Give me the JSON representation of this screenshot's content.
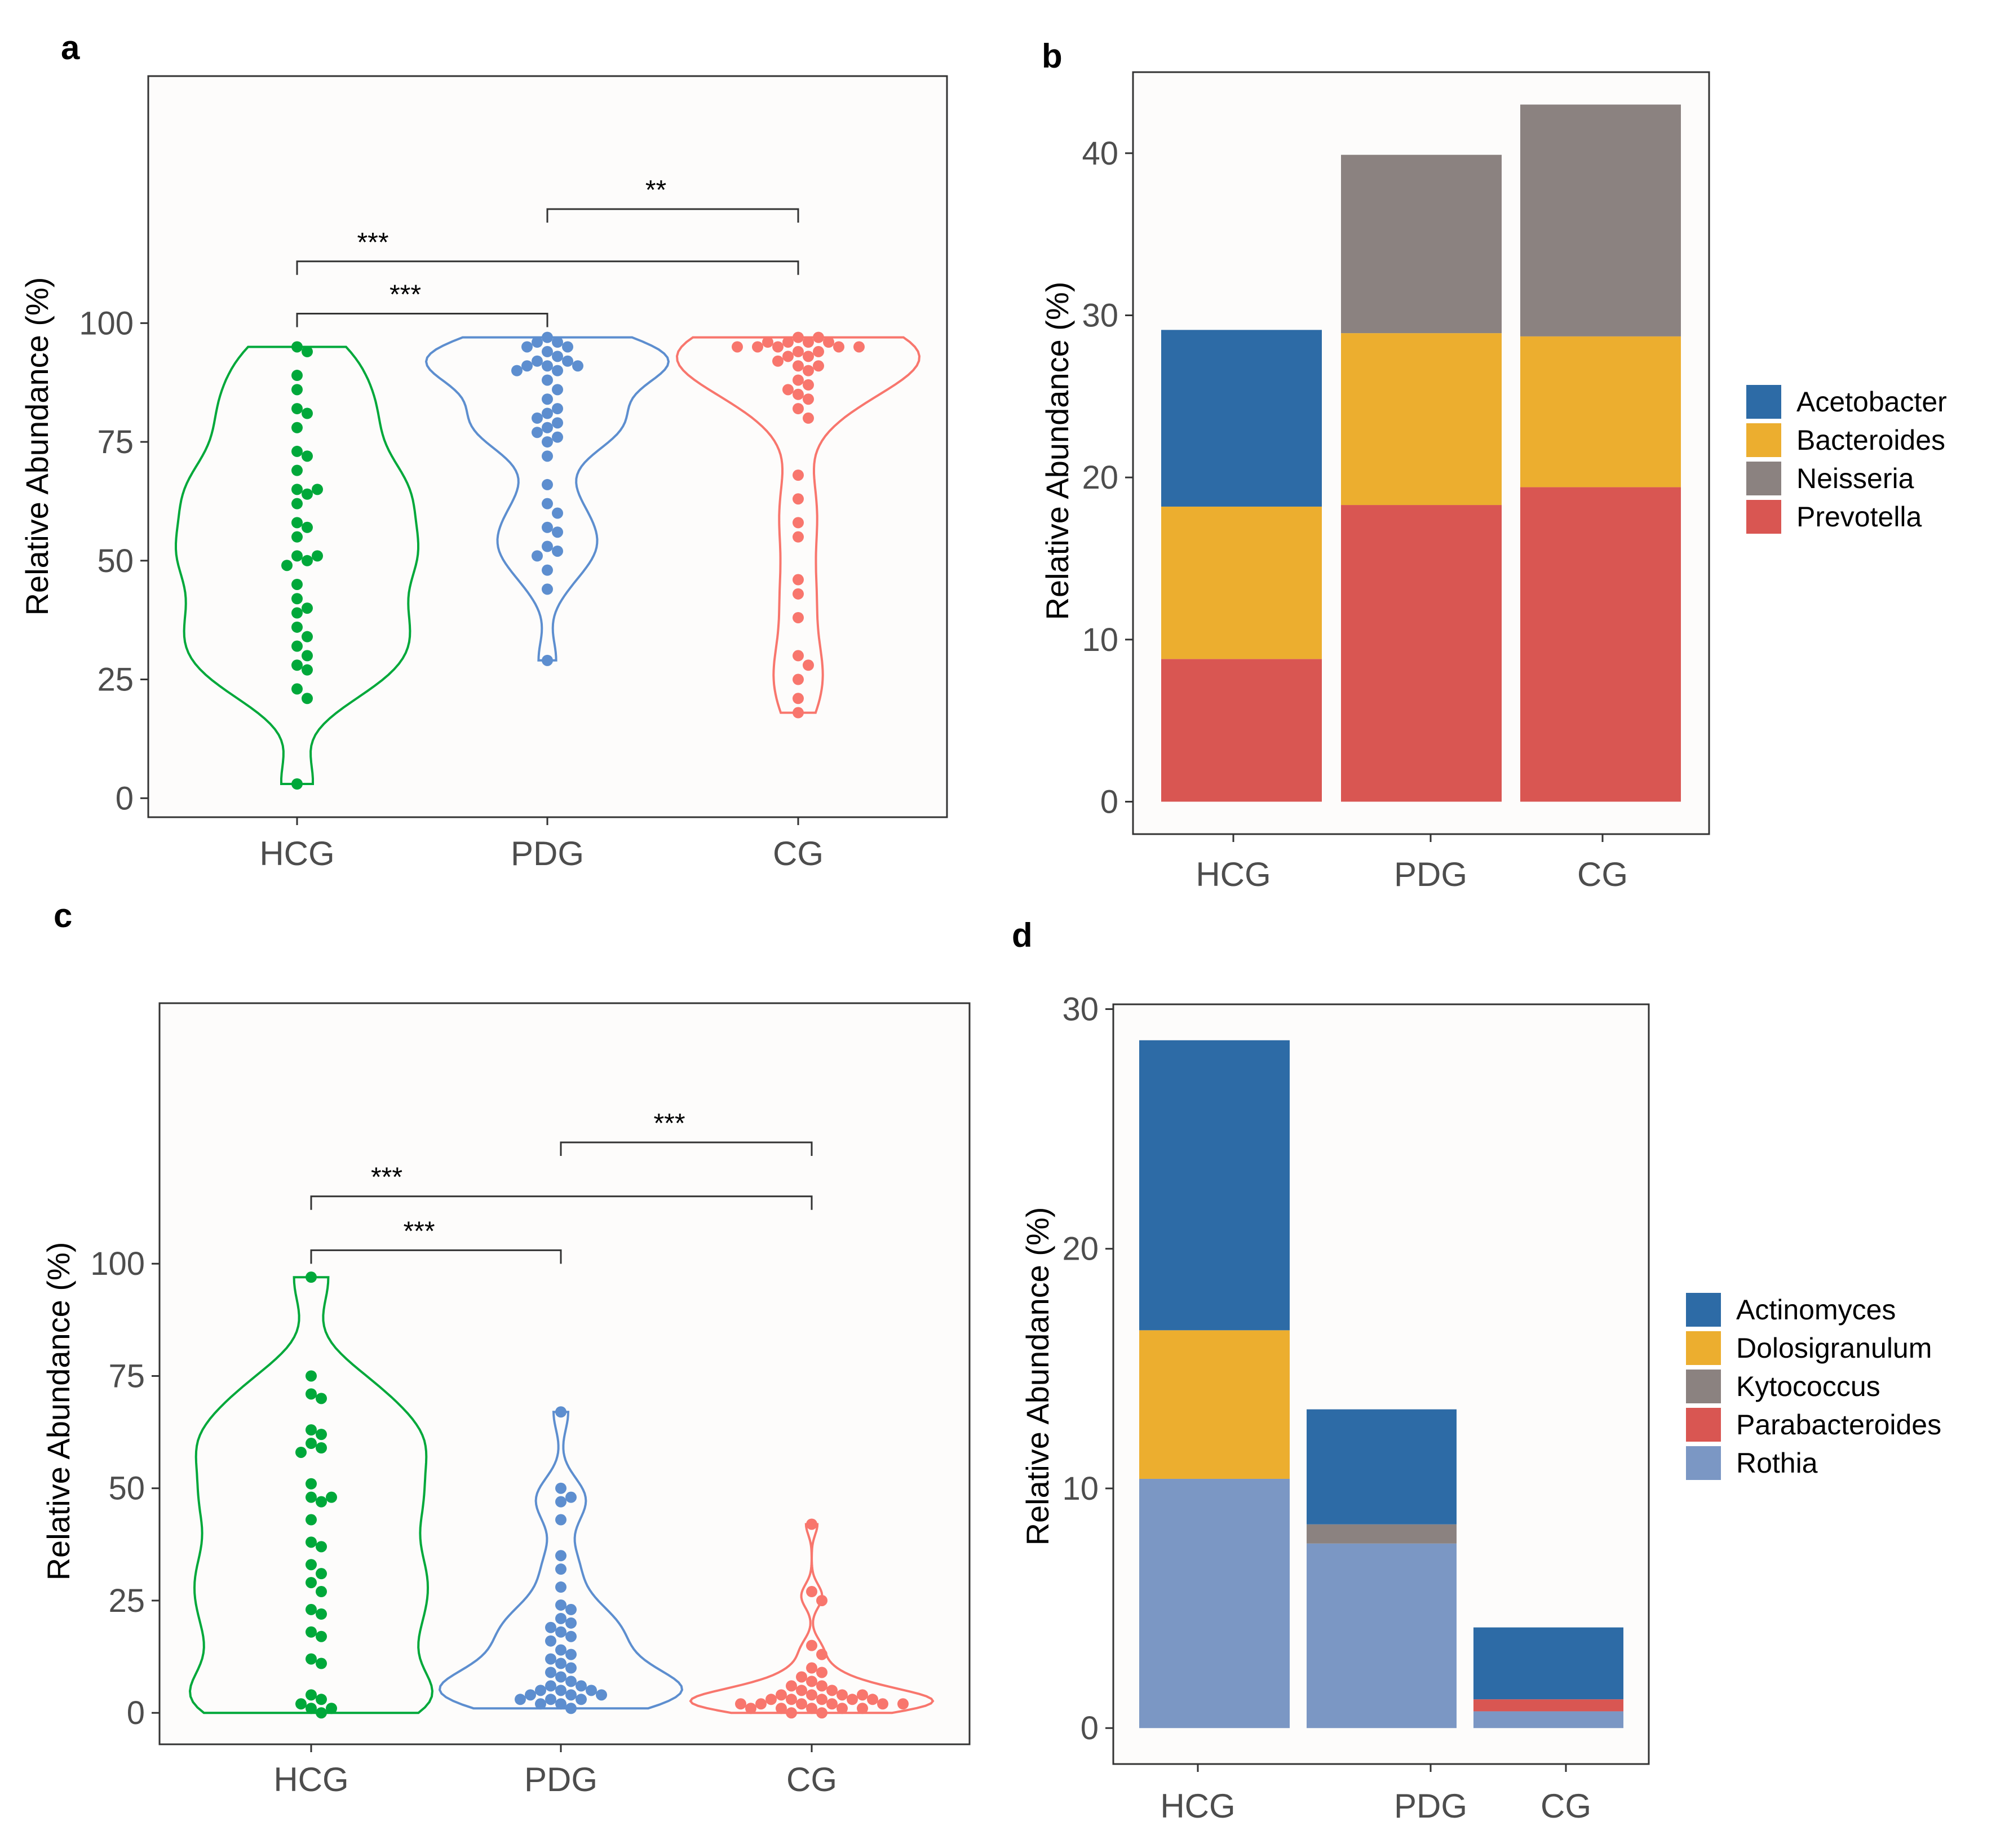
{
  "figure": {
    "panels": [
      "a",
      "b",
      "c",
      "d"
    ]
  },
  "chart_data": [
    {
      "id": "a",
      "type": "violin",
      "title": "",
      "xlabel": "",
      "ylabel": "Relative Abundance (%)",
      "categories": [
        "HCG",
        "PDG",
        "CG"
      ],
      "colors": [
        "#00a83a",
        "#5d8ecf",
        "#f8766d"
      ],
      "yticks": [
        0,
        25,
        50,
        75,
        100
      ],
      "ylim": [
        -4,
        152
      ],
      "series": [
        {
          "name": "HCG",
          "values": [
            95,
            94,
            89,
            86,
            82,
            81,
            78,
            73,
            72,
            69,
            65,
            65,
            64,
            62,
            58,
            57,
            55,
            51,
            51,
            50,
            49,
            45,
            42,
            40,
            39,
            36,
            34,
            32,
            30,
            28,
            27,
            23,
            21,
            3
          ]
        },
        {
          "name": "PDG",
          "values": [
            97,
            96,
            96,
            95,
            95,
            94,
            93,
            92,
            92,
            91,
            91,
            91,
            90,
            90,
            88,
            86,
            84,
            82,
            81,
            80,
            79,
            78,
            77,
            76,
            75,
            72,
            66,
            62,
            60,
            57,
            56,
            53,
            52,
            51,
            48,
            44,
            29
          ]
        },
        {
          "name": "CG",
          "values": [
            97,
            97,
            96,
            96,
            96,
            96,
            95,
            95,
            95,
            95,
            95,
            94,
            94,
            93,
            93,
            92,
            91,
            91,
            90,
            88,
            87,
            86,
            85,
            84,
            82,
            80,
            68,
            63,
            58,
            55,
            46,
            43,
            38,
            30,
            28,
            25,
            21,
            18
          ]
        }
      ],
      "significance": [
        {
          "from": "HCG",
          "to": "PDG",
          "label": "***",
          "y": 102
        },
        {
          "from": "HCG",
          "to": "CG",
          "label": "***",
          "y": 113
        },
        {
          "from": "PDG",
          "to": "CG",
          "label": "**",
          "y": 124
        }
      ]
    },
    {
      "id": "b",
      "type": "stacked-bar",
      "title": "",
      "xlabel": "",
      "ylabel": "Relative Abundance (%)",
      "categories": [
        "HCG",
        "PDG",
        "CG"
      ],
      "yticks": [
        0,
        10,
        20,
        30,
        40
      ],
      "ylim": [
        -2,
        45
      ],
      "legend_position": "right",
      "series": [
        {
          "name": "Acetobacter",
          "color": "#2d6ba6",
          "values": [
            10.9,
            0,
            0
          ]
        },
        {
          "name": "Bacteroides",
          "color": "#ecae2f",
          "values": [
            9.4,
            10.6,
            9.3
          ]
        },
        {
          "name": "Neisseria",
          "color": "#8b8280",
          "values": [
            0,
            11.0,
            14.3
          ]
        },
        {
          "name": "Prevotella",
          "color": "#d95652",
          "values": [
            8.8,
            18.3,
            19.4
          ]
        }
      ],
      "stack_order": [
        "Prevotella",
        "Bacteroides",
        "Neisseria",
        "Acetobacter"
      ]
    },
    {
      "id": "c",
      "type": "violin",
      "title": "",
      "xlabel": "",
      "ylabel": "Relative Abundance (%)",
      "categories": [
        "HCG",
        "PDG",
        "CG"
      ],
      "colors": [
        "#00a83a",
        "#5d8ecf",
        "#f8766d"
      ],
      "yticks": [
        0,
        25,
        50,
        75,
        100
      ],
      "ylim": [
        -7,
        158
      ],
      "series": [
        {
          "name": "HCG",
          "values": [
            97,
            75,
            71,
            70,
            63,
            62,
            60,
            59,
            58,
            51,
            48,
            48,
            47,
            43,
            38,
            37,
            33,
            31,
            29,
            27,
            23,
            22,
            18,
            17,
            12,
            11,
            4,
            3,
            2,
            1,
            1,
            0
          ]
        },
        {
          "name": "PDG",
          "values": [
            67,
            50,
            48,
            47,
            43,
            35,
            32,
            28,
            24,
            23,
            21,
            20,
            19,
            18,
            17,
            16,
            14,
            13,
            12,
            11,
            10,
            9,
            8,
            7,
            6,
            6,
            5,
            5,
            5,
            4,
            4,
            4,
            3,
            3,
            3,
            2,
            2,
            1
          ]
        },
        {
          "name": "CG",
          "values": [
            42,
            27,
            25,
            15,
            13,
            10,
            9,
            8,
            7,
            6,
            6,
            5,
            5,
            4,
            4,
            4,
            4,
            3,
            3,
            3,
            3,
            3,
            2,
            2,
            2,
            2,
            2,
            2,
            1,
            1,
            1,
            1,
            1,
            0,
            0
          ]
        }
      ],
      "significance": [
        {
          "from": "HCG",
          "to": "PDG",
          "label": "***",
          "y": 103
        },
        {
          "from": "HCG",
          "to": "CG",
          "label": "***",
          "y": 115
        },
        {
          "from": "PDG",
          "to": "CG",
          "label": "***",
          "y": 127
        }
      ]
    },
    {
      "id": "d",
      "type": "stacked-bar",
      "title": "",
      "xlabel": "",
      "ylabel": "Relative Abundance (%)",
      "categories": [
        "HCG",
        "PDG",
        "CG"
      ],
      "yticks": [
        0,
        10,
        20,
        30
      ],
      "ylim": [
        -1.5,
        30.2
      ],
      "legend_position": "right",
      "series": [
        {
          "name": "Actinomyces",
          "color": "#2d6ba6",
          "values": [
            12.1,
            4.8,
            3.0
          ]
        },
        {
          "name": "Dolosigranulum",
          "color": "#ecae2f",
          "values": [
            6.2,
            0,
            0
          ]
        },
        {
          "name": "Kytococcus",
          "color": "#8b8280",
          "values": [
            0,
            0.8,
            0
          ]
        },
        {
          "name": "Parabacteroides",
          "color": "#d95652",
          "values": [
            0,
            0,
            0.5
          ]
        },
        {
          "name": "Rothia",
          "color": "#7b97c4",
          "values": [
            10.4,
            7.7,
            0.7
          ]
        }
      ],
      "stack_order": [
        "Rothia",
        "Parabacteroides",
        "Kytococcus",
        "Dolosigranulum",
        "Actinomyces"
      ]
    }
  ]
}
